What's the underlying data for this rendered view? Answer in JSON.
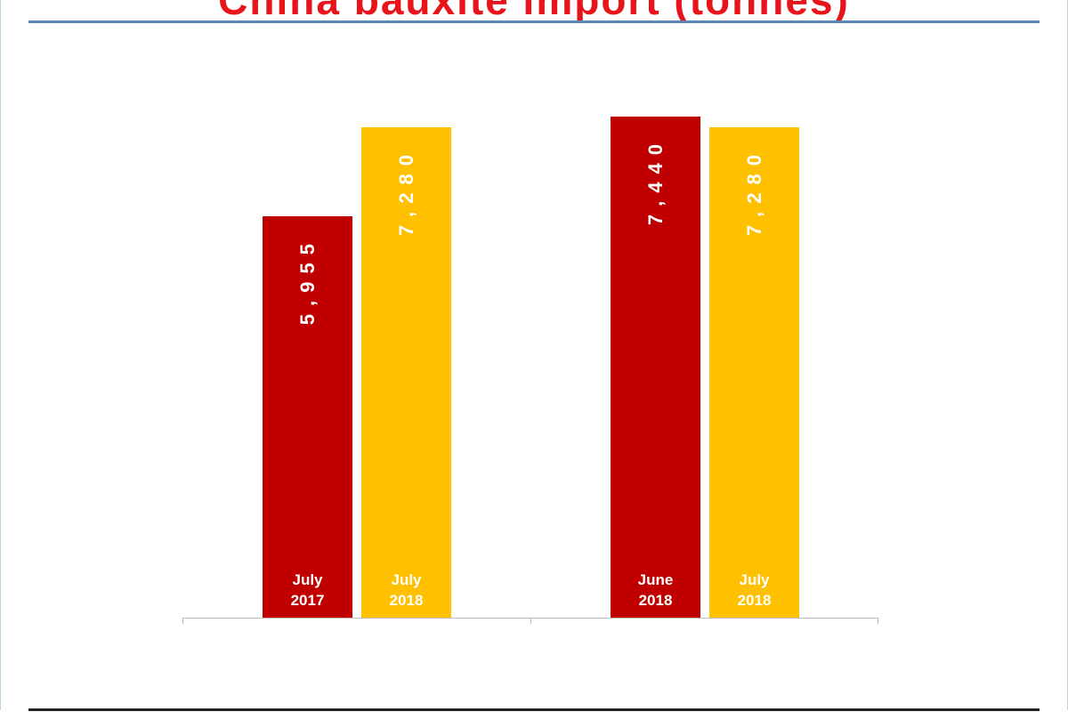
{
  "chart_data": {
    "type": "bar",
    "title": "China bauxite import (tonnes)",
    "categories": [
      "July 2017",
      "July 2018",
      "June 2018",
      "July 2018"
    ],
    "values": [
      5955,
      7280,
      7440,
      7280
    ],
    "value_labels": [
      "5,955",
      "7,280",
      "7,440",
      "7,280"
    ],
    "colors": [
      "#c00000",
      "#ffc000",
      "#c00000",
      "#ffc000"
    ]
  }
}
